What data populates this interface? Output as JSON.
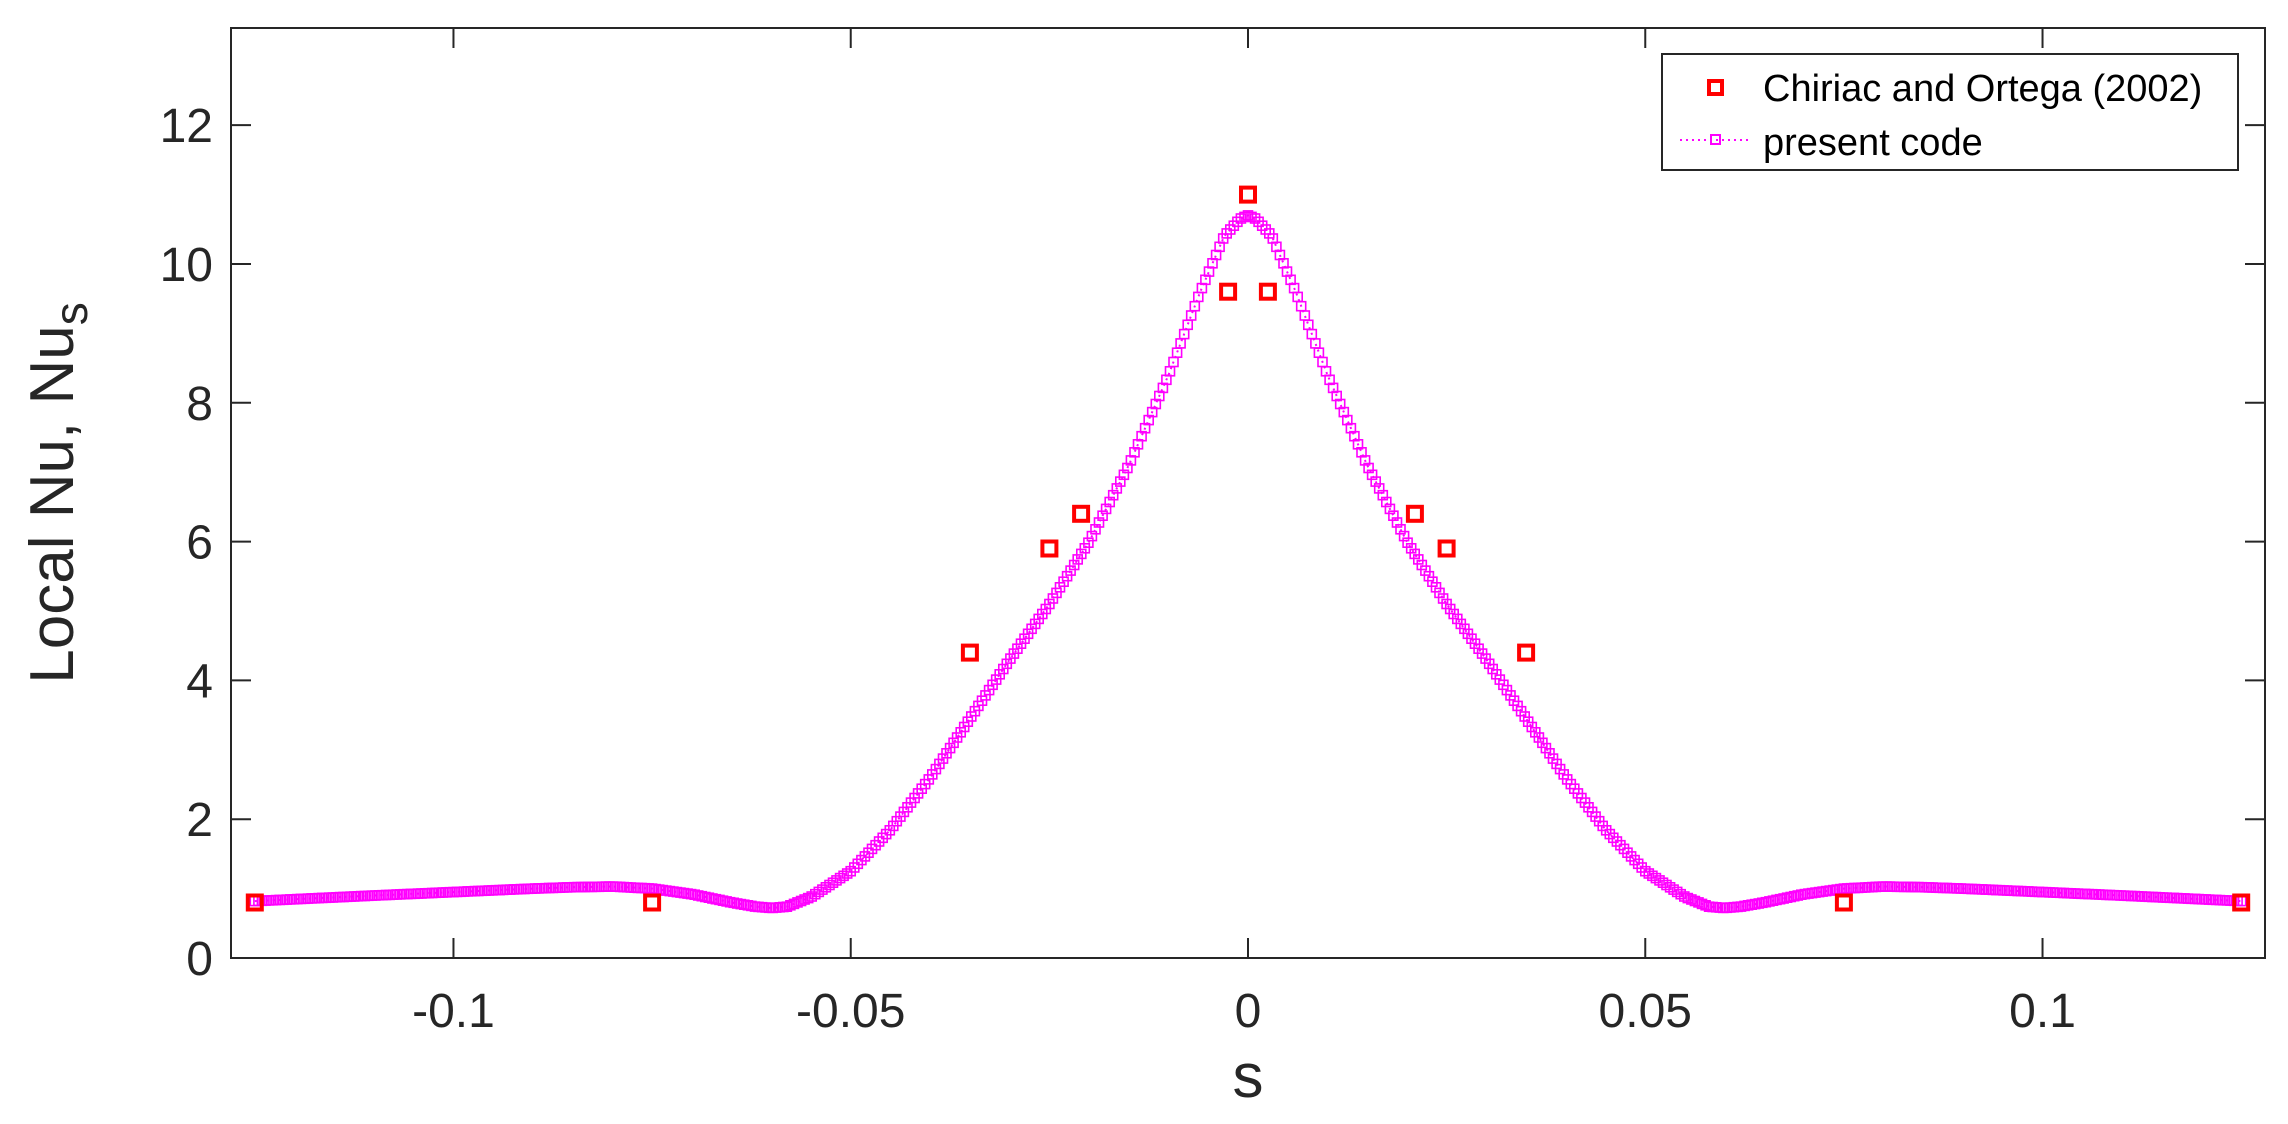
{
  "chart_data": {
    "type": "scatter",
    "xlabel": "s",
    "ylabel_main": "Local Nu, Nu",
    "ylabel_sub": "s",
    "xlim": [
      -0.128,
      0.128
    ],
    "ylim": [
      0,
      13.4
    ],
    "xticks": [
      -0.1,
      -0.05,
      0,
      0.05,
      0.1
    ],
    "xtick_labels": [
      "-0.1",
      "-0.05",
      "0",
      "0.05",
      "0.1"
    ],
    "yticks": [
      0,
      2,
      4,
      6,
      8,
      10,
      12
    ],
    "ytick_labels": [
      "0",
      "2",
      "4",
      "6",
      "8",
      "10",
      "12"
    ],
    "grid": false,
    "legend_position": "top-right",
    "series": [
      {
        "name": "Chiriac and Ortega (2002)",
        "style": "square markers, no line",
        "color": "#ff0000",
        "x": [
          -0.125,
          -0.075,
          -0.035,
          -0.025,
          -0.021,
          -0.0025,
          0.0,
          0.0025,
          0.021,
          0.025,
          0.035,
          0.075,
          0.125
        ],
        "y": [
          0.8,
          0.8,
          4.4,
          5.9,
          6.4,
          9.6,
          11.0,
          9.6,
          6.4,
          5.9,
          4.4,
          0.8,
          0.8
        ]
      },
      {
        "name": "present code",
        "style": "dotted line with small square markers",
        "color": "#ff00ff",
        "x": [
          -0.125,
          -0.11,
          -0.1,
          -0.09,
          -0.085,
          -0.08,
          -0.075,
          -0.07,
          -0.065,
          -0.062,
          -0.06,
          -0.058,
          -0.055,
          -0.05,
          -0.045,
          -0.04,
          -0.035,
          -0.03,
          -0.025,
          -0.02,
          -0.015,
          -0.01,
          -0.006,
          -0.003,
          -0.001,
          0.0,
          0.001,
          0.003,
          0.006,
          0.01,
          0.015,
          0.02,
          0.025,
          0.03,
          0.035,
          0.04,
          0.045,
          0.05,
          0.055,
          0.058,
          0.06,
          0.062,
          0.065,
          0.07,
          0.075,
          0.08,
          0.085,
          0.09,
          0.1,
          0.11,
          0.125
        ],
        "y": [
          0.82,
          0.9,
          0.95,
          1.0,
          1.02,
          1.03,
          1.0,
          0.92,
          0.8,
          0.74,
          0.72,
          0.74,
          0.88,
          1.25,
          1.85,
          2.6,
          3.45,
          4.3,
          5.1,
          6.0,
          7.1,
          8.4,
          9.6,
          10.4,
          10.65,
          10.7,
          10.65,
          10.4,
          9.6,
          8.4,
          7.1,
          6.0,
          5.1,
          4.3,
          3.45,
          2.6,
          1.85,
          1.25,
          0.88,
          0.74,
          0.72,
          0.74,
          0.8,
          0.92,
          1.0,
          1.03,
          1.02,
          1.0,
          0.95,
          0.9,
          0.82
        ]
      }
    ]
  },
  "legend": {
    "entries": [
      "Chiriac and Ortega (2002)",
      "present code"
    ]
  }
}
